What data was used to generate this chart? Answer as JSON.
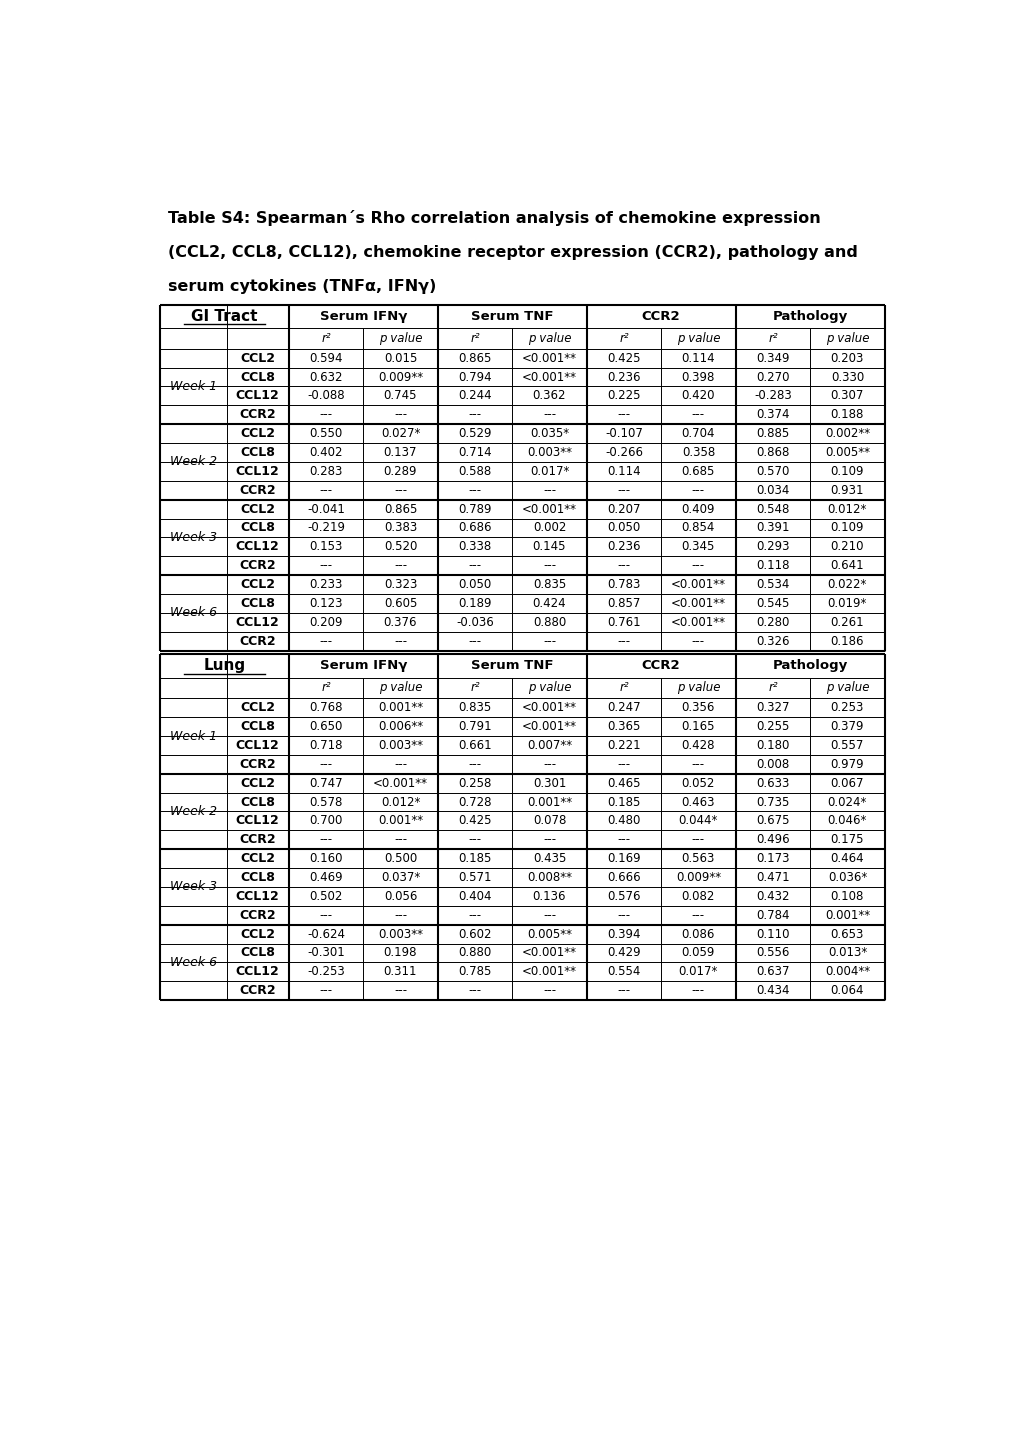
{
  "title_line1": "Table S4: Spearman´s Rho correlation analysis of chemokine expression",
  "title_line2": "(CCL2, CCL8, CCL12), chemokine receptor expression (CCR2), pathology and",
  "title_line3": "serum cytokines (TNFα, IFNγ)",
  "gi_tract": {
    "header": "GI Tract",
    "col_headers": [
      "Serum IFNγ",
      "Serum TNF",
      "CCR2",
      "Pathology"
    ],
    "sub_headers": [
      "r²",
      "p value",
      "r²",
      "p value",
      "r²",
      "p value",
      "r²",
      "p value"
    ],
    "weeks": [
      "Week 1",
      "Week 2",
      "Week 3",
      "Week 6"
    ],
    "rows": [
      [
        "CCL2",
        "0.594",
        "0.015",
        "0.865",
        "<0.001**",
        "0.425",
        "0.114",
        "0.349",
        "0.203"
      ],
      [
        "CCL8",
        "0.632",
        "0.009**",
        "0.794",
        "<0.001**",
        "0.236",
        "0.398",
        "0.270",
        "0.330"
      ],
      [
        "CCL12",
        "-0.088",
        "0.745",
        "0.244",
        "0.362",
        "0.225",
        "0.420",
        "-0.283",
        "0.307"
      ],
      [
        "CCR2",
        "---",
        "---",
        "---",
        "---",
        "---",
        "---",
        "0.374",
        "0.188"
      ],
      [
        "CCL2",
        "0.550",
        "0.027*",
        "0.529",
        "0.035*",
        "-0.107",
        "0.704",
        "0.885",
        "0.002**"
      ],
      [
        "CCL8",
        "0.402",
        "0.137",
        "0.714",
        "0.003**",
        "-0.266",
        "0.358",
        "0.868",
        "0.005**"
      ],
      [
        "CCL12",
        "0.283",
        "0.289",
        "0.588",
        "0.017*",
        "0.114",
        "0.685",
        "0.570",
        "0.109"
      ],
      [
        "CCR2",
        "---",
        "---",
        "---",
        "---",
        "---",
        "---",
        "0.034",
        "0.931"
      ],
      [
        "CCL2",
        "-0.041",
        "0.865",
        "0.789",
        "<0.001**",
        "0.207",
        "0.409",
        "0.548",
        "0.012*"
      ],
      [
        "CCL8",
        "-0.219",
        "0.383",
        "0.686",
        "0.002",
        "0.050",
        "0.854",
        "0.391",
        "0.109"
      ],
      [
        "CCL12",
        "0.153",
        "0.520",
        "0.338",
        "0.145",
        "0.236",
        "0.345",
        "0.293",
        "0.210"
      ],
      [
        "CCR2",
        "---",
        "---",
        "---",
        "---",
        "---",
        "---",
        "0.118",
        "0.641"
      ],
      [
        "CCL2",
        "0.233",
        "0.323",
        "0.050",
        "0.835",
        "0.783",
        "<0.001**",
        "0.534",
        "0.022*"
      ],
      [
        "CCL8",
        "0.123",
        "0.605",
        "0.189",
        "0.424",
        "0.857",
        "<0.001**",
        "0.545",
        "0.019*"
      ],
      [
        "CCL12",
        "0.209",
        "0.376",
        "-0.036",
        "0.880",
        "0.761",
        "<0.001**",
        "0.280",
        "0.261"
      ],
      [
        "CCR2",
        "---",
        "---",
        "---",
        "---",
        "---",
        "---",
        "0.326",
        "0.186"
      ]
    ]
  },
  "lung": {
    "header": "Lung",
    "col_headers": [
      "Serum IFNγ",
      "Serum TNF",
      "CCR2",
      "Pathology"
    ],
    "sub_headers": [
      "r²",
      "p value",
      "r²",
      "p value",
      "r²",
      "p value",
      "r²",
      "p value"
    ],
    "weeks": [
      "Week 1",
      "Week 2",
      "Week 3",
      "Week 6"
    ],
    "rows": [
      [
        "CCL2",
        "0.768",
        "0.001**",
        "0.835",
        "<0.001**",
        "0.247",
        "0.356",
        "0.327",
        "0.253"
      ],
      [
        "CCL8",
        "0.650",
        "0.006**",
        "0.791",
        "<0.001**",
        "0.365",
        "0.165",
        "0.255",
        "0.379"
      ],
      [
        "CCL12",
        "0.718",
        "0.003**",
        "0.661",
        "0.007**",
        "0.221",
        "0.428",
        "0.180",
        "0.557"
      ],
      [
        "CCR2",
        "---",
        "---",
        "---",
        "---",
        "---",
        "---",
        "0.008",
        "0.979"
      ],
      [
        "CCL2",
        "0.747",
        "<0.001**",
        "0.258",
        "0.301",
        "0.465",
        "0.052",
        "0.633",
        "0.067"
      ],
      [
        "CCL8",
        "0.578",
        "0.012*",
        "0.728",
        "0.001**",
        "0.185",
        "0.463",
        "0.735",
        "0.024*"
      ],
      [
        "CCL12",
        "0.700",
        "0.001**",
        "0.425",
        "0.078",
        "0.480",
        "0.044*",
        "0.675",
        "0.046*"
      ],
      [
        "CCR2",
        "---",
        "---",
        "---",
        "---",
        "---",
        "---",
        "0.496",
        "0.175"
      ],
      [
        "CCL2",
        "0.160",
        "0.500",
        "0.185",
        "0.435",
        "0.169",
        "0.563",
        "0.173",
        "0.464"
      ],
      [
        "CCL8",
        "0.469",
        "0.037*",
        "0.571",
        "0.008**",
        "0.666",
        "0.009**",
        "0.471",
        "0.036*"
      ],
      [
        "CCL12",
        "0.502",
        "0.056",
        "0.404",
        "0.136",
        "0.576",
        "0.082",
        "0.432",
        "0.108"
      ],
      [
        "CCR2",
        "---",
        "---",
        "---",
        "---",
        "---",
        "---",
        "0.784",
        "0.001**"
      ],
      [
        "CCL2",
        "-0.624",
        "0.003**",
        "0.602",
        "0.005**",
        "0.394",
        "0.086",
        "0.110",
        "0.653"
      ],
      [
        "CCL8",
        "-0.301",
        "0.198",
        "0.880",
        "<0.001**",
        "0.429",
        "0.059",
        "0.556",
        "0.013*"
      ],
      [
        "CCL12",
        "-0.253",
        "0.311",
        "0.785",
        "<0.001**",
        "0.554",
        "0.017*",
        "0.637",
        "0.004**"
      ],
      [
        "CCR2",
        "---",
        "---",
        "---",
        "---",
        "---",
        "---",
        "0.434",
        "0.064"
      ]
    ]
  }
}
